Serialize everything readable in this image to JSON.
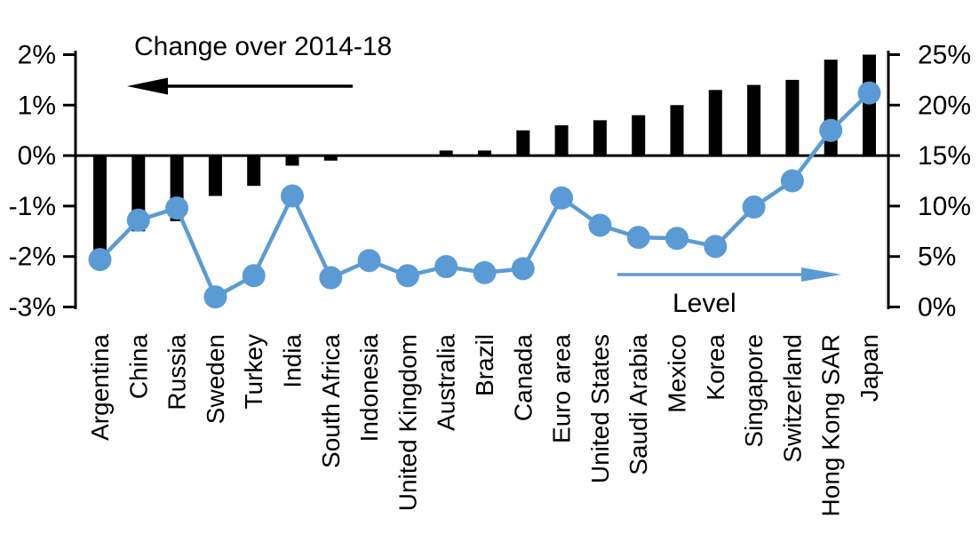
{
  "page": {
    "background": "#FFFFFF",
    "text_color": "#000000"
  },
  "chart_data": {
    "type": "bar",
    "subtype": "dual-axis bar + line combo",
    "title": "",
    "categories": [
      "Argentina",
      "China",
      "Russia",
      "Sweden",
      "Turkey",
      "India",
      "South Africa",
      "Indonesia",
      "United Kingdom",
      "Australia",
      "Brazil",
      "Canada",
      "Euro area",
      "United States",
      "Saudi Arabia",
      "Mexico",
      "Korea",
      "Singapore",
      "Switzerland",
      "Hong Kong SAR",
      "Japan"
    ],
    "series": [
      {
        "name": "Change over 2014-18",
        "render": "bar",
        "axis": "left",
        "color": "#000000",
        "values": [
          -2.0,
          -1.5,
          -1.3,
          -0.8,
          -0.6,
          -0.2,
          -0.1,
          0.0,
          0.0,
          0.1,
          0.1,
          0.5,
          0.6,
          0.7,
          0.8,
          1.0,
          1.3,
          1.4,
          1.5,
          1.9,
          2.0
        ]
      },
      {
        "name": "Level",
        "render": "line",
        "axis": "right",
        "color": "#5B9BD5",
        "values": [
          4.7,
          8.6,
          9.8,
          1.0,
          3.1,
          11.0,
          2.9,
          4.6,
          3.1,
          4.0,
          3.4,
          3.8,
          10.8,
          8.1,
          6.9,
          6.8,
          6.0,
          9.9,
          12.5,
          17.5,
          21.2
        ]
      }
    ],
    "left_axis": {
      "min": -3,
      "max": 2,
      "tick_step": 1,
      "tick_labels": [
        "2%",
        "1%",
        "0%",
        "-1%",
        "-2%",
        "-3%"
      ]
    },
    "right_axis": {
      "min": 0,
      "max": 25,
      "tick_step": 5,
      "tick_labels": [
        "25%",
        "20%",
        "15%",
        "10%",
        "5%",
        "0%"
      ]
    },
    "grid": false,
    "legend_position": "in-plot text annotations with direction arrows",
    "annotations": {
      "bars_arrow_direction": "left",
      "line_arrow_direction": "right"
    }
  }
}
